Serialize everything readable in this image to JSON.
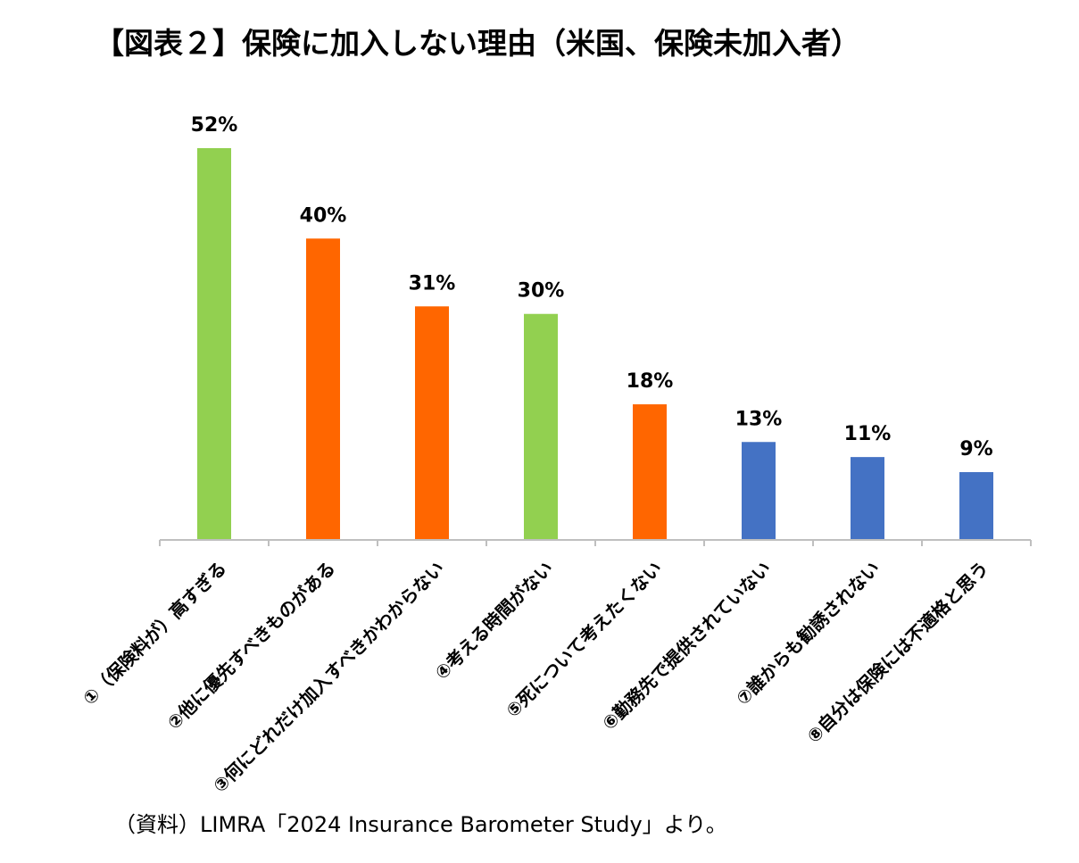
{
  "title": "【図表２】保険に加入しない理由（米国、保険未加入者）",
  "source": "（資料）LIMRA「2024 Insurance Barometer Study」より。",
  "colors": {
    "green": "#92d050",
    "orange": "#ff6600",
    "blue": "#4472c4",
    "axis": "#bfbfbf"
  },
  "chart_data": {
    "type": "bar",
    "categories": [
      "①（保険料が）高すぎる",
      "②他に優先すべきものがある",
      "③何にどれだけ加入すべきかわからない",
      "④考える時間がない",
      "⑤死について考えたくない",
      "⑥勤務先で提供されていない",
      "⑦誰からも勧誘されない",
      "⑧自分は保険には不適格と思う"
    ],
    "values": [
      52,
      40,
      31,
      30,
      18,
      13,
      11,
      9
    ],
    "value_labels": [
      "52%",
      "40%",
      "31%",
      "30%",
      "18%",
      "13%",
      "11%",
      "9%"
    ],
    "bar_colors": [
      "green",
      "orange",
      "orange",
      "green",
      "orange",
      "blue",
      "blue",
      "blue"
    ],
    "ylim": [
      0,
      52
    ],
    "grid": false,
    "legend": "none"
  }
}
